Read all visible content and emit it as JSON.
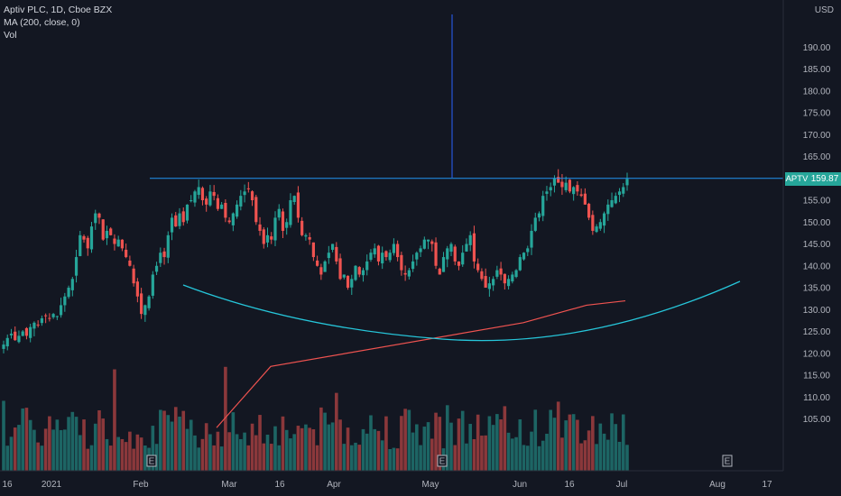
{
  "legend": {
    "symbol": "Aptiv PLC, 1D, Cboe BZX",
    "ma": "MA (200, close, 0)",
    "vol": "Vol"
  },
  "axis": {
    "currency": "USD",
    "ticker_badge": "APTV",
    "last_price": "159.87",
    "y_ticks": [
      "190.00",
      "185.00",
      "180.00",
      "175.00",
      "170.00",
      "165.00",
      "155.00",
      "150.00",
      "145.00",
      "140.00",
      "135.00",
      "130.00",
      "125.00",
      "120.00",
      "115.00",
      "110.00",
      "105.00"
    ],
    "x_ticks": [
      "16",
      "2021",
      "Feb",
      "Mar",
      "16",
      "Apr",
      "May",
      "Jun",
      "16",
      "Jul",
      "Aug",
      "17"
    ],
    "event_marker": "E"
  },
  "colors": {
    "background": "#131722",
    "up": "#26a69a",
    "down": "#ef5350",
    "ma": "#ef5350",
    "arc": "#26c6da",
    "resistance": "#2196f3"
  },
  "chart_data": {
    "type": "candlestick",
    "title": "Aptiv PLC, 1D, Cboe BZX",
    "ylabel": "USD",
    "ylim": [
      103,
      193
    ],
    "resistance_level": 160,
    "last_price": 159.87,
    "closes": [
      122,
      123.5,
      124.5,
      123,
      124,
      125,
      124,
      126,
      127,
      126.5,
      128,
      128.5,
      128,
      129,
      128.5,
      131,
      133,
      135,
      137,
      142,
      147,
      146,
      144,
      149,
      152,
      151,
      146,
      148,
      147,
      145,
      146,
      144,
      142,
      140,
      136,
      133,
      129,
      131,
      133,
      138,
      140,
      143,
      142,
      147,
      151,
      149,
      152,
      150,
      154,
      155,
      157,
      158,
      155,
      154,
      157,
      156,
      153,
      154,
      151,
      150,
      152,
      154,
      156,
      157,
      157.5,
      155,
      150,
      148,
      145,
      147,
      146,
      151,
      153,
      148,
      150,
      155,
      156,
      151,
      147,
      147,
      146,
      142,
      140,
      138,
      141,
      143,
      145,
      141,
      137,
      138,
      135,
      137,
      140,
      138,
      139,
      141,
      143,
      144,
      141,
      143,
      142,
      143,
      145,
      142,
      139,
      138,
      139,
      141,
      143,
      144,
      146,
      146,
      145,
      140,
      138,
      142,
      144,
      145,
      141,
      140,
      143,
      145,
      147,
      141,
      139,
      137,
      135,
      136,
      137,
      139,
      138,
      136,
      137,
      138,
      139,
      142,
      143,
      144,
      148,
      151,
      152,
      156,
      157,
      158,
      160,
      159,
      158,
      159,
      157,
      158,
      157,
      156,
      154,
      151,
      148,
      149,
      150,
      152,
      154,
      155,
      156,
      157,
      158,
      159.87
    ],
    "volume_range": [
      0,
      6.2
    ],
    "ma200": [
      [
        0,
        103
      ],
      [
        300,
        117
      ],
      [
        580,
        127
      ],
      [
        650,
        131
      ],
      [
        693,
        132
      ]
    ],
    "cup_arc": [
      [
        203,
        316
      ],
      [
        330,
        364
      ],
      [
        490,
        376
      ],
      [
        640,
        360
      ],
      [
        820,
        312
      ]
    ],
    "event_markers_x": [
      168,
      490,
      806
    ]
  }
}
